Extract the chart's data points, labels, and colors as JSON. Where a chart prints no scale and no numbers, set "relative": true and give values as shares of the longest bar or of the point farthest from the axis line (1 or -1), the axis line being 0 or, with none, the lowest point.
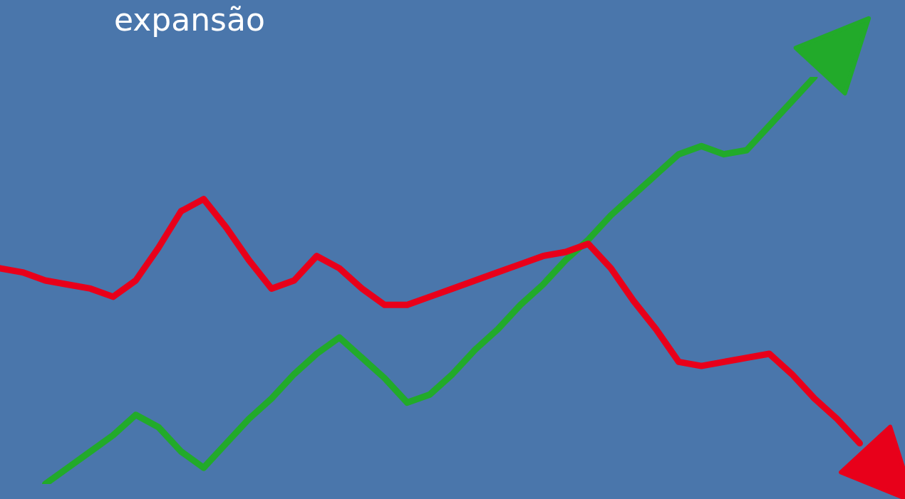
{
  "chart_data": {
    "type": "line",
    "title": "expansão",
    "relative": true,
    "legend": false,
    "categories": [
      null,
      null,
      null,
      null,
      null,
      null,
      null,
      null,
      null,
      null,
      null,
      null,
      null,
      null,
      null,
      null,
      null,
      null,
      null,
      null,
      null,
      null,
      null,
      null,
      null,
      null,
      null,
      null,
      null,
      null,
      null,
      null,
      null,
      null,
      null,
      null,
      null,
      null,
      null,
      null,
      null
    ],
    "series": [
      {
        "color": "#e8001a",
        "values": [
          0.53,
          0.52,
          0.5,
          0.49,
          0.48,
          0.46,
          0.5,
          0.58,
          0.67,
          0.7,
          0.63,
          0.55,
          0.48,
          0.5,
          0.56,
          0.53,
          0.48,
          0.44,
          0.44,
          0.46,
          0.48,
          0.5,
          0.52,
          0.54,
          0.56,
          0.57,
          0.59,
          0.53,
          0.45,
          0.38,
          0.3,
          0.29,
          0.3,
          0.31,
          0.32,
          0.27,
          0.21,
          0.16,
          0.1,
          null,
          null
        ]
      },
      {
        "color": "#22aa2a",
        "values": [
          null,
          null,
          0,
          0.04,
          0.08,
          0.12,
          0.17,
          0.14,
          0.08,
          0.04,
          0.1,
          0.16,
          0.21,
          0.27,
          0.32,
          0.36,
          0.31,
          0.26,
          0.2,
          0.22,
          0.27,
          0.33,
          0.38,
          0.44,
          0.49,
          0.55,
          0.6,
          0.66,
          0.71,
          0.76,
          0.81,
          0.83,
          0.81,
          0.82,
          0.88,
          0.94,
          1,
          null,
          null,
          null,
          null
        ]
      }
    ]
  }
}
